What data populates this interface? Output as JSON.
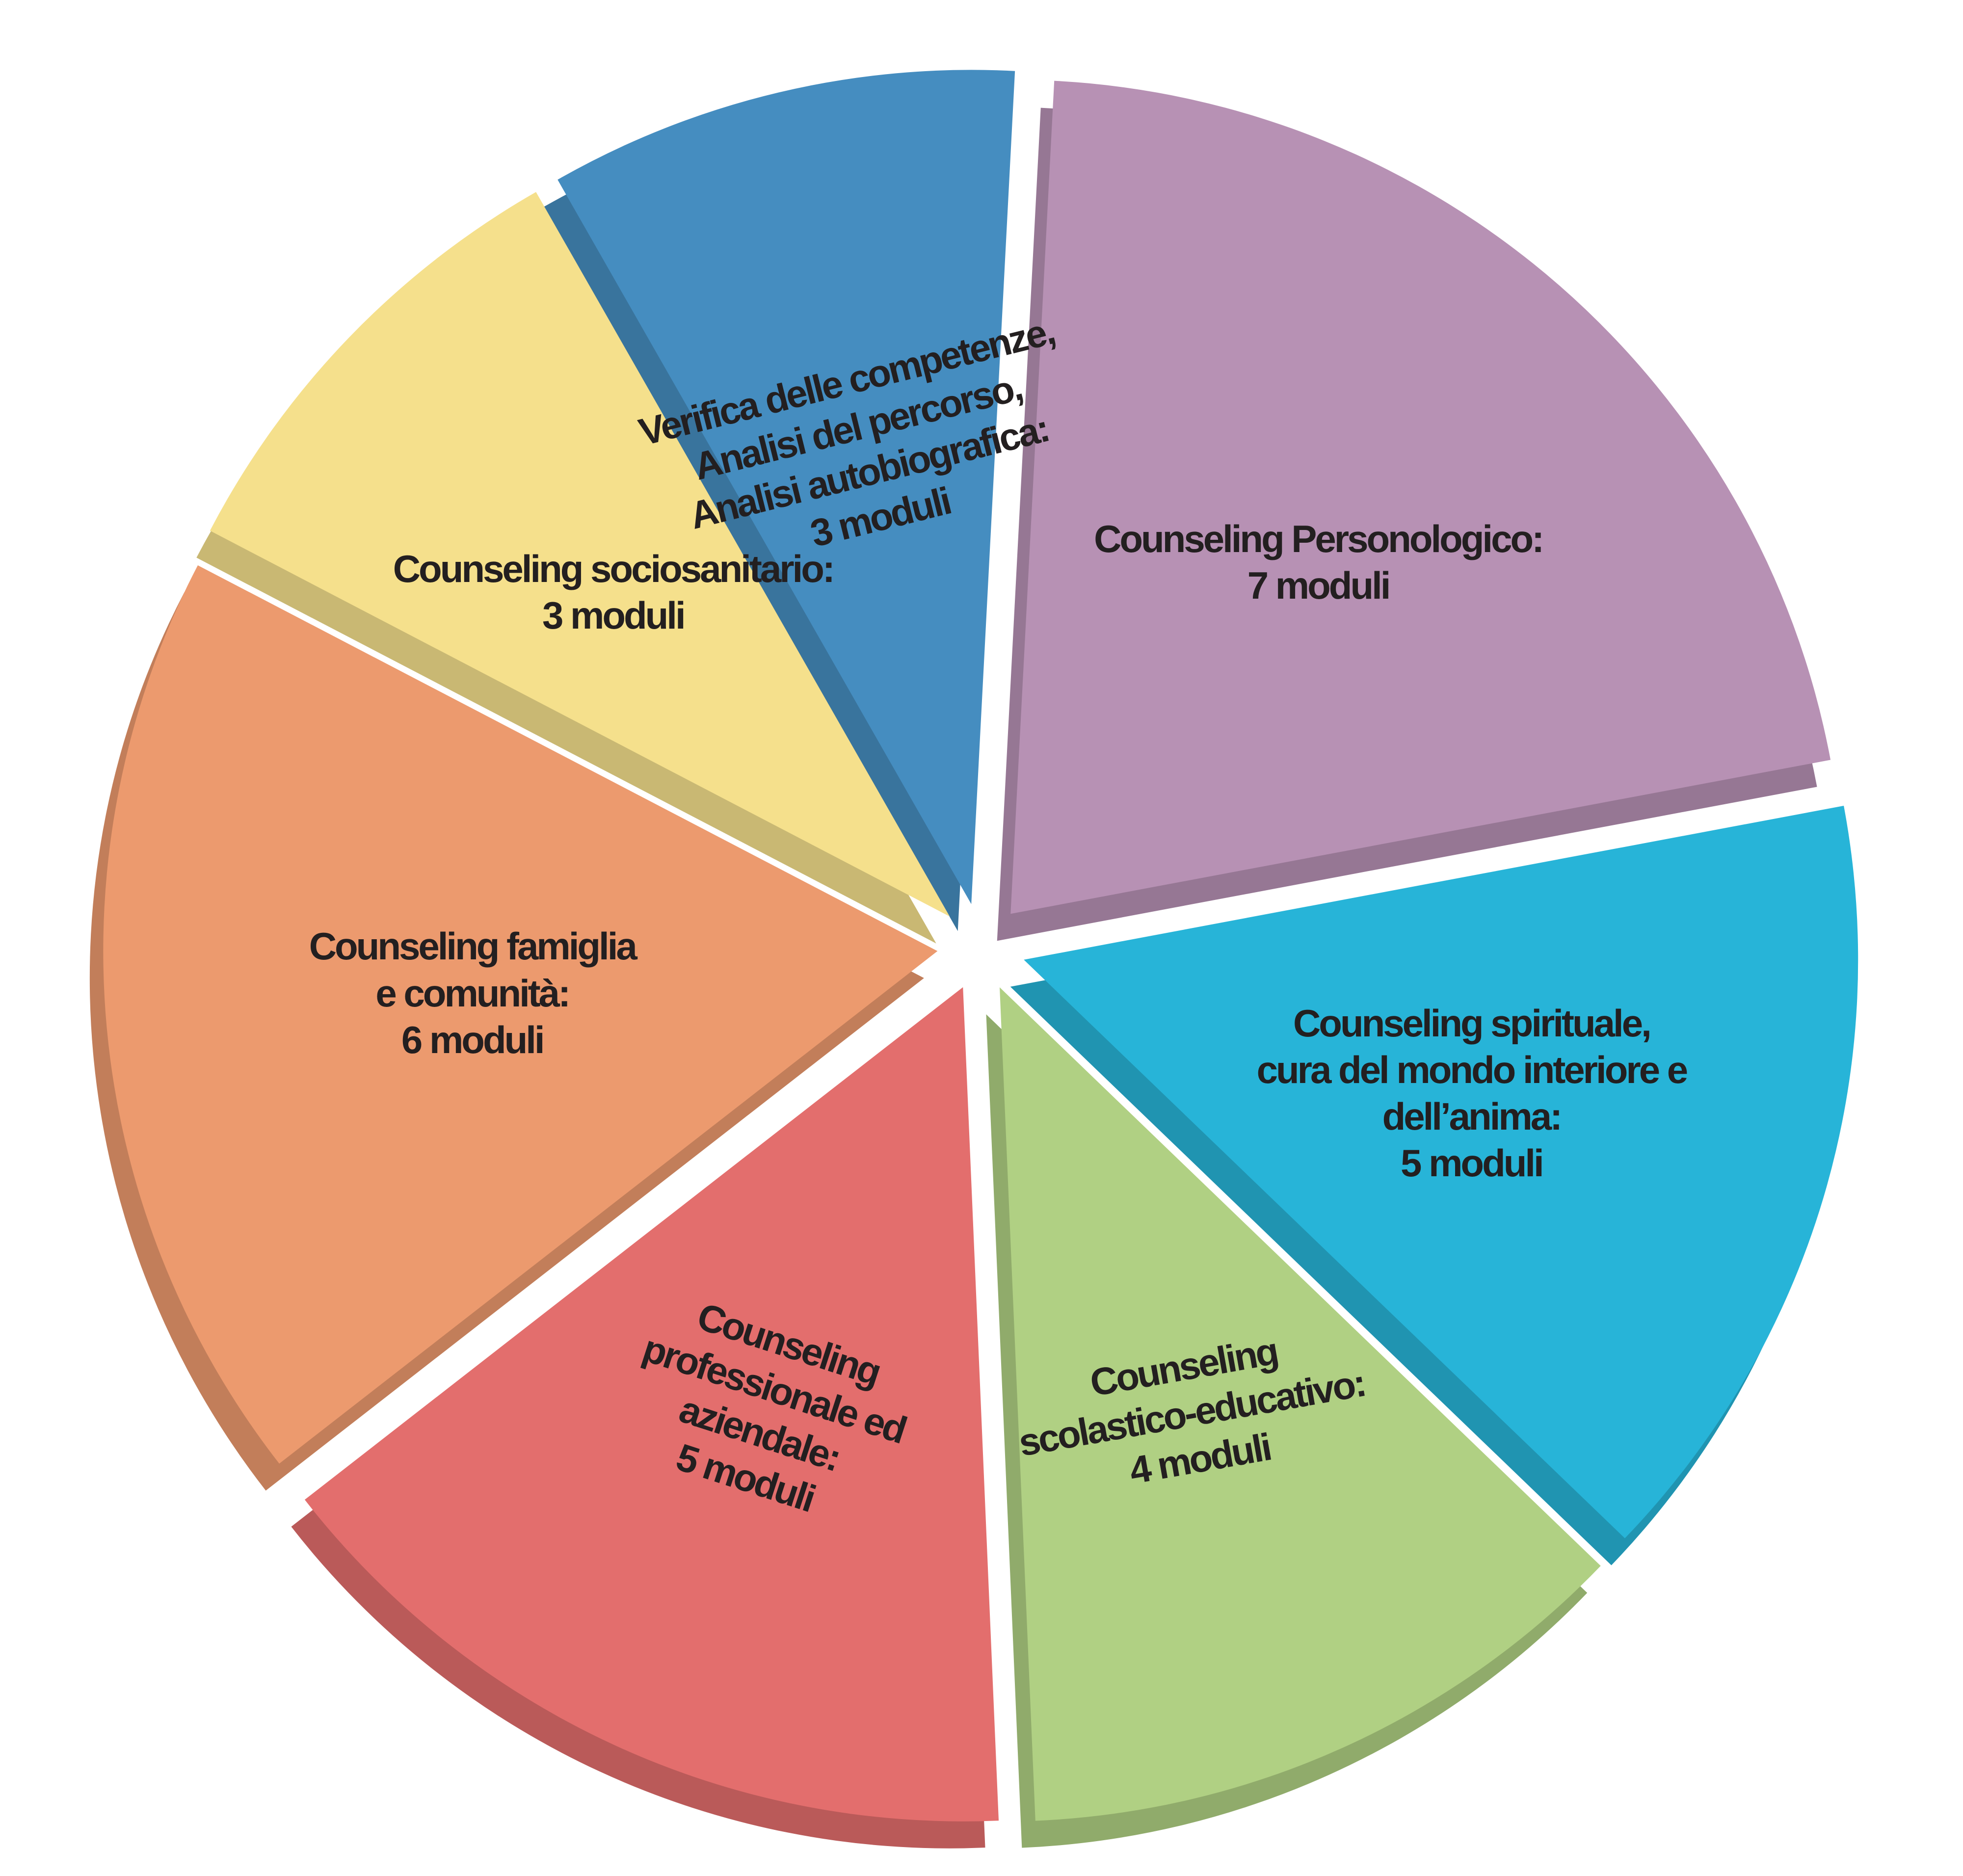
{
  "chart_data": {
    "type": "pie",
    "categories": [
      "Counseling Personologico:",
      "Counseling spirituale,\ncura del mondo interiore e\ndell’anima:",
      "Counseling\nscolastico-educativo:",
      "Counseling\nprofessionale ed\naziendale:",
      "Counseling famiglia\ne comunità:",
      "Counseling sociosanitario:",
      "Verifica delle competenze,\nAnalisi del percorso,\nAnalisi autobiografica:"
    ],
    "values": [
      7,
      5,
      4,
      5,
      6,
      3,
      3
    ],
    "value_labels": [
      "7 moduli",
      "5 moduli",
      "4 moduli",
      "5 moduli",
      "6 moduli",
      "3 moduli",
      "3 moduli"
    ],
    "colors": [
      "#b791b4",
      "#27b4d8",
      "#b0d083",
      "#e36e6d",
      "#ec9a6e",
      "#f5e08c",
      "#458dc0"
    ]
  }
}
